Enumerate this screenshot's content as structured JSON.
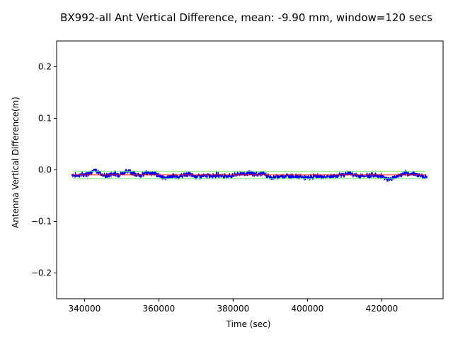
{
  "chart_data": {
    "type": "line",
    "title": "BX992-all Ant Vertical Difference, mean: -9.90 mm, window=120 secs",
    "xlabel": "Time (sec)",
    "ylabel": "Antenna Vertical Difference(m)",
    "xlim": [
      332500,
      436500
    ],
    "ylim": [
      -0.25,
      0.25
    ],
    "xticks": [
      340000,
      360000,
      380000,
      400000,
      420000
    ],
    "xtick_labels": [
      "340000",
      "360000",
      "380000",
      "400000",
      "420000"
    ],
    "yticks": [
      0.2,
      0.1,
      0.0,
      -0.1,
      -0.2
    ],
    "ytick_labels": [
      "0.2",
      "0.1",
      "0.0",
      "−0.1",
      "−0.2"
    ],
    "grid": false,
    "series": [
      {
        "style": "raw",
        "color": "#0000ff",
        "x": [
          336800,
          338000,
          340000,
          341200,
          342000,
          343000,
          344000,
          345000,
          346000,
          347200,
          348000,
          349000,
          350000,
          351000,
          352000,
          353000,
          354000,
          355000,
          356000,
          357000,
          358000,
          359000,
          360000,
          361000,
          362000,
          363000,
          364000,
          365000,
          366000,
          367000,
          368000,
          369000,
          370000,
          372000,
          374000,
          376000,
          378000,
          380000,
          381000,
          382000,
          383000,
          384000,
          385000,
          386000,
          387000,
          388000,
          389000,
          390000,
          391000,
          392000,
          394000,
          396000,
          398000,
          399000,
          400000,
          401000,
          402000,
          403000,
          404000,
          406000,
          408000,
          409000,
          410000,
          411000,
          412000,
          413000,
          414000,
          416000,
          418000,
          419000,
          420000,
          421000,
          422000,
          423000,
          424000,
          425000,
          426000,
          427000,
          428000,
          429000,
          430000,
          431000,
          432000
        ],
        "y": [
          -0.01,
          -0.011,
          -0.009,
          -0.006,
          -0.003,
          -0.002,
          -0.005,
          -0.01,
          -0.012,
          -0.008,
          -0.007,
          -0.009,
          -0.007,
          -0.004,
          -0.001,
          -0.006,
          -0.011,
          -0.01,
          -0.008,
          -0.006,
          -0.006,
          -0.007,
          -0.012,
          -0.014,
          -0.015,
          -0.013,
          -0.012,
          -0.014,
          -0.012,
          -0.01,
          -0.008,
          -0.011,
          -0.013,
          -0.012,
          -0.011,
          -0.01,
          -0.012,
          -0.011,
          -0.009,
          -0.007,
          -0.008,
          -0.006,
          -0.007,
          -0.009,
          -0.008,
          -0.007,
          -0.011,
          -0.014,
          -0.015,
          -0.013,
          -0.012,
          -0.012,
          -0.013,
          -0.015,
          -0.016,
          -0.014,
          -0.012,
          -0.013,
          -0.014,
          -0.013,
          -0.011,
          -0.01,
          -0.009,
          -0.006,
          -0.008,
          -0.011,
          -0.012,
          -0.011,
          -0.01,
          -0.011,
          -0.013,
          -0.016,
          -0.018,
          -0.016,
          -0.013,
          -0.01,
          -0.008,
          -0.007,
          -0.008,
          -0.008,
          -0.01,
          -0.012,
          -0.014
        ]
      },
      {
        "style": "mean",
        "color": "#ff0000",
        "x": [
          336800,
          432000
        ],
        "y": [
          -0.0099,
          -0.0099
        ]
      },
      {
        "style": "band",
        "color": "#77ee77",
        "x": [
          336800,
          432000
        ],
        "y_upper": [
          -0.0025,
          -0.0025
        ],
        "y_lower": [
          -0.017,
          -0.017
        ]
      }
    ]
  }
}
